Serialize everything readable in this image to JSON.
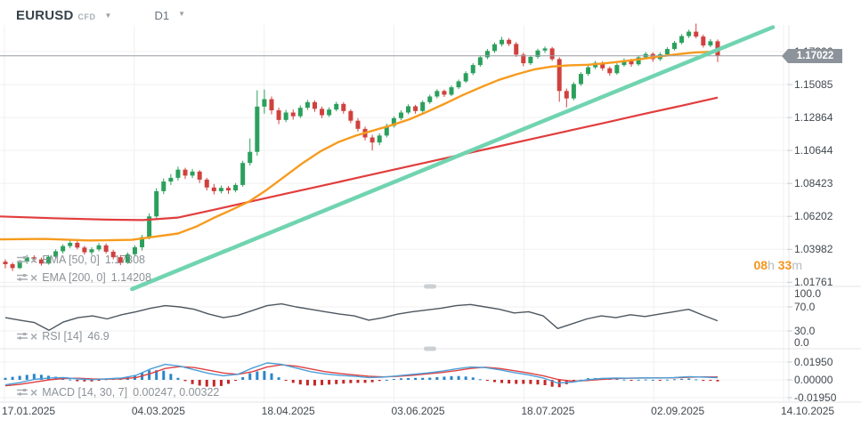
{
  "toolbar": {
    "symbol": "EURUSD",
    "market_type": "CFD",
    "timeframe": "D1"
  },
  "indicators": {
    "ema_fast": {
      "label": "EMA [50, 0]",
      "value": "1.17308"
    },
    "ema_slow": {
      "label": "EMA [200, 0]",
      "value": "1.14208"
    },
    "rsi": {
      "label": "RSI [14]",
      "value": "46.9"
    },
    "macd": {
      "label": "MACD [14, 30, 7]",
      "value": "0.00247,  0.00322"
    }
  },
  "countdown": {
    "hours": "08",
    "hours_unit": "h",
    "minutes": "33",
    "minutes_unit": "m"
  },
  "price_badge": {
    "label": "1.17022"
  },
  "colors": {
    "candle_up": "#2ba05c",
    "candle_down": "#d0413e",
    "ema_fast": "#f79b1e",
    "ema_slow": "#e23d3d",
    "trendline": "#70d4b0",
    "price_line": "#979ea4",
    "rsi_line": "#4d565f",
    "macd_line": "#4a9fd8",
    "macd_signal": "#e04040",
    "hist_pos": "#2a86c8",
    "hist_neg": "#c62828",
    "grid": "#f0f0f0",
    "divider": "#e4e6e8",
    "tick": "#c9cdd1",
    "handle": "#ccd0d3"
  },
  "chart_data": {
    "type": "candlestick",
    "symbol": "EURUSD",
    "timeframe": "D1",
    "current_price": 1.17022,
    "price_axis_ticks": [
      1.17306,
      1.15085,
      1.12864,
      1.10644,
      1.08423,
      1.06202,
      1.03982,
      1.01761
    ],
    "time_axis_ticks": [
      "17.01.2025",
      "04.03.2025",
      "18.04.2025",
      "03.06.2025",
      "18.07.2025",
      "02.09.2025",
      "14.10.2025"
    ],
    "candles": [
      [
        1.0315,
        1.033,
        1.027,
        1.0298
      ],
      [
        1.0298,
        1.031,
        1.0252,
        1.0272
      ],
      [
        1.0272,
        1.0325,
        1.0265,
        1.0315
      ],
      [
        1.0315,
        1.036,
        1.03,
        1.0345
      ],
      [
        1.0345,
        1.0358,
        1.0312,
        1.033
      ],
      [
        1.033,
        1.0342,
        1.0288,
        1.0302
      ],
      [
        1.0302,
        1.036,
        1.0295,
        1.0348
      ],
      [
        1.0348,
        1.0398,
        1.0335,
        1.0385
      ],
      [
        1.0385,
        1.0432,
        1.037,
        1.042
      ],
      [
        1.042,
        1.0458,
        1.0405,
        1.0442
      ],
      [
        1.0442,
        1.0455,
        1.0398,
        1.041
      ],
      [
        1.041,
        1.0422,
        1.0362,
        1.0378
      ],
      [
        1.0378,
        1.0412,
        1.036,
        1.0398
      ],
      [
        1.0398,
        1.044,
        1.0385,
        1.0425
      ],
      [
        1.0425,
        1.0438,
        1.037,
        1.0382
      ],
      [
        1.0382,
        1.0395,
        1.033,
        1.0345
      ],
      [
        1.0345,
        1.036,
        1.0292,
        1.0308
      ],
      [
        1.0308,
        1.0378,
        1.03,
        1.0365
      ],
      [
        1.0365,
        1.0425,
        1.0352,
        1.0412
      ],
      [
        1.0412,
        1.0495,
        1.039,
        1.048
      ],
      [
        1.048,
        1.064,
        1.0465,
        1.062
      ],
      [
        1.062,
        1.081,
        1.0605,
        1.079
      ],
      [
        1.079,
        1.0875,
        1.077,
        1.0855
      ],
      [
        1.0855,
        1.0905,
        1.0832,
        1.088
      ],
      [
        1.088,
        1.0955,
        1.0862,
        1.0935
      ],
      [
        1.0935,
        1.0948,
        1.0872,
        1.0895
      ],
      [
        1.0895,
        1.094,
        1.0878,
        1.0922
      ],
      [
        1.0922,
        1.0932,
        1.0845,
        1.0868
      ],
      [
        1.0868,
        1.088,
        1.0795,
        1.0815
      ],
      [
        1.0815,
        1.0838,
        1.0768,
        1.079
      ],
      [
        1.079,
        1.0828,
        1.0775,
        1.0812
      ],
      [
        1.0812,
        1.0825,
        1.0772,
        1.0795
      ],
      [
        1.0795,
        1.0845,
        1.0782,
        1.0832
      ],
      [
        1.0832,
        1.0995,
        1.082,
        1.098
      ],
      [
        1.098,
        1.1145,
        1.0962,
        1.1055
      ],
      [
        1.1055,
        1.147,
        1.103,
        1.136
      ],
      [
        1.136,
        1.1475,
        1.1312,
        1.141
      ],
      [
        1.141,
        1.1428,
        1.1308,
        1.1335
      ],
      [
        1.1335,
        1.1352,
        1.1242,
        1.127
      ],
      [
        1.127,
        1.1338,
        1.1255,
        1.132
      ],
      [
        1.132,
        1.134,
        1.1272,
        1.1295
      ],
      [
        1.1295,
        1.1368,
        1.1282,
        1.1352
      ],
      [
        1.1352,
        1.1405,
        1.1338,
        1.139
      ],
      [
        1.139,
        1.1402,
        1.1325,
        1.1345
      ],
      [
        1.1345,
        1.136,
        1.1282,
        1.1302
      ],
      [
        1.1302,
        1.1355,
        1.129,
        1.134
      ],
      [
        1.134,
        1.1392,
        1.1328,
        1.1378
      ],
      [
        1.1378,
        1.139,
        1.1312,
        1.133
      ],
      [
        1.133,
        1.1342,
        1.1248,
        1.1265
      ],
      [
        1.1265,
        1.1282,
        1.1192,
        1.121
      ],
      [
        1.121,
        1.1225,
        1.1132,
        1.1152
      ],
      [
        1.1152,
        1.117,
        1.1065,
        1.1118
      ],
      [
        1.1118,
        1.118,
        1.11,
        1.1165
      ],
      [
        1.1165,
        1.1245,
        1.1152,
        1.123
      ],
      [
        1.123,
        1.1295,
        1.1218,
        1.1282
      ],
      [
        1.1282,
        1.1335,
        1.1268,
        1.132
      ],
      [
        1.132,
        1.1375,
        1.1308,
        1.1362
      ],
      [
        1.1362,
        1.1372,
        1.1312,
        1.133
      ],
      [
        1.133,
        1.1402,
        1.132,
        1.139
      ],
      [
        1.139,
        1.144,
        1.1378,
        1.1428
      ],
      [
        1.1428,
        1.1478,
        1.1415,
        1.1465
      ],
      [
        1.1465,
        1.1475,
        1.1425,
        1.144
      ],
      [
        1.144,
        1.1502,
        1.143,
        1.149
      ],
      [
        1.149,
        1.1542,
        1.1478,
        1.153
      ],
      [
        1.153,
        1.1598,
        1.152,
        1.1585
      ],
      [
        1.1585,
        1.1652,
        1.1572,
        1.164
      ],
      [
        1.164,
        1.1705,
        1.1628,
        1.1692
      ],
      [
        1.1692,
        1.1748,
        1.168,
        1.1735
      ],
      [
        1.1735,
        1.1792,
        1.1722,
        1.178
      ],
      [
        1.178,
        1.183,
        1.1765,
        1.181
      ],
      [
        1.181,
        1.1822,
        1.1768,
        1.1782
      ],
      [
        1.1782,
        1.1795,
        1.1695,
        1.171
      ],
      [
        1.171,
        1.1722,
        1.1632,
        1.1652
      ],
      [
        1.1652,
        1.1705,
        1.164,
        1.1695
      ],
      [
        1.1695,
        1.175,
        1.1682,
        1.1738
      ],
      [
        1.1738,
        1.1765,
        1.1722,
        1.1752
      ],
      [
        1.1752,
        1.1762,
        1.1668,
        1.168
      ],
      [
        1.168,
        1.1692,
        1.1392,
        1.1465
      ],
      [
        1.1465,
        1.1482,
        1.1355,
        1.1415
      ],
      [
        1.1415,
        1.1525,
        1.1402,
        1.1512
      ],
      [
        1.1512,
        1.1592,
        1.15,
        1.158
      ],
      [
        1.158,
        1.1638,
        1.1568,
        1.1625
      ],
      [
        1.1625,
        1.1668,
        1.1612,
        1.1655
      ],
      [
        1.1655,
        1.1665,
        1.1602,
        1.1618
      ],
      [
        1.1618,
        1.163,
        1.1568,
        1.1585
      ],
      [
        1.1585,
        1.1652,
        1.1575,
        1.164
      ],
      [
        1.164,
        1.1685,
        1.1628,
        1.1672
      ],
      [
        1.1672,
        1.1682,
        1.1628,
        1.1645
      ],
      [
        1.1645,
        1.1705,
        1.1635,
        1.1692
      ],
      [
        1.1692,
        1.1728,
        1.168,
        1.1715
      ],
      [
        1.1715,
        1.1725,
        1.1662,
        1.168
      ],
      [
        1.168,
        1.1725,
        1.1668,
        1.1712
      ],
      [
        1.1712,
        1.176,
        1.17,
        1.1748
      ],
      [
        1.1748,
        1.1802,
        1.1738,
        1.179
      ],
      [
        1.179,
        1.1848,
        1.178,
        1.1835
      ],
      [
        1.1835,
        1.1878,
        1.1822,
        1.1865
      ],
      [
        1.1865,
        1.1919,
        1.182,
        1.1832
      ],
      [
        1.1832,
        1.1845,
        1.1758,
        1.1772
      ],
      [
        1.1772,
        1.1815,
        1.176,
        1.18
      ],
      [
        1.18,
        1.1812,
        1.166,
        1.17022
      ]
    ],
    "ema_fast": {
      "period": 50,
      "last_value": 1.17308,
      "points": [
        [
          0,
          1.0465
        ],
        [
          0.062,
          1.0468
        ],
        [
          0.124,
          1.0458
        ],
        [
          0.184,
          1.0462
        ],
        [
          0.211,
          1.048
        ],
        [
          0.248,
          1.0505
        ],
        [
          0.273,
          1.055
        ],
        [
          0.298,
          1.061
        ],
        [
          0.323,
          1.0665
        ],
        [
          0.347,
          1.072
        ],
        [
          0.372,
          1.08
        ],
        [
          0.397,
          1.089
        ],
        [
          0.422,
          1.098
        ],
        [
          0.447,
          1.106
        ],
        [
          0.471,
          1.112
        ],
        [
          0.496,
          1.1165
        ],
        [
          0.521,
          1.12
        ],
        [
          0.546,
          1.1235
        ],
        [
          0.571,
          1.1275
        ],
        [
          0.595,
          1.1325
        ],
        [
          0.62,
          1.138
        ],
        [
          0.645,
          1.1438
        ],
        [
          0.67,
          1.149
        ],
        [
          0.695,
          1.154
        ],
        [
          0.72,
          1.1578
        ],
        [
          0.744,
          1.161
        ],
        [
          0.769,
          1.163
        ],
        [
          0.794,
          1.1638
        ],
        [
          0.819,
          1.1642
        ],
        [
          0.844,
          1.1652
        ],
        [
          0.868,
          1.1665
        ],
        [
          0.893,
          1.168
        ],
        [
          0.918,
          1.1697
        ],
        [
          0.943,
          1.1712
        ],
        [
          0.968,
          1.1725
        ],
        [
          1.0,
          1.17308
        ]
      ]
    },
    "ema_slow": {
      "period": 200,
      "last_value": 1.14208,
      "points": [
        [
          0,
          1.062
        ],
        [
          0.074,
          1.0608
        ],
        [
          0.149,
          1.0598
        ],
        [
          0.199,
          1.0595
        ],
        [
          0.248,
          1.0612
        ],
        [
          0.298,
          1.0665
        ],
        [
          0.347,
          1.0718
        ],
        [
          0.397,
          1.0772
        ],
        [
          0.447,
          1.0825
        ],
        [
          0.496,
          1.0878
        ],
        [
          0.546,
          1.0932
        ],
        [
          0.595,
          1.0985
        ],
        [
          0.645,
          1.1039
        ],
        [
          0.695,
          1.1092
        ],
        [
          0.744,
          1.1145
        ],
        [
          0.794,
          1.1199
        ],
        [
          0.844,
          1.1252
        ],
        [
          0.893,
          1.1306
        ],
        [
          0.943,
          1.1359
        ],
        [
          1.0,
          1.14208
        ]
      ]
    },
    "trendline": {
      "from": [
        0.184,
        1.013
      ],
      "to": [
        1.077,
        1.1895
      ]
    },
    "rsi": {
      "period": 14,
      "last_value": 46.9,
      "axis_ticks": [
        100.0,
        70.0,
        30.0,
        0.0
      ],
      "values": [
        52,
        48,
        44,
        31,
        45,
        52,
        55,
        50,
        57,
        62,
        68,
        72,
        70,
        66,
        58,
        52,
        56,
        64,
        72,
        75,
        70,
        66,
        62,
        58,
        55,
        48,
        52,
        58,
        62,
        65,
        68,
        72,
        74,
        70,
        66,
        60,
        62,
        55,
        34,
        42,
        50,
        55,
        52,
        57,
        54,
        58,
        62,
        66,
        56,
        46.9
      ]
    },
    "macd": {
      "params": [
        14,
        30,
        7
      ],
      "last_macd": 0.00247,
      "last_signal": 0.00322,
      "axis_ticks": [
        0.0195,
        0.0,
        -0.0195
      ],
      "macd_line": [
        -0.0055,
        -0.003,
        0.0005,
        0.002,
        0.0025,
        0.001,
        0.0002,
        0.0012,
        0.002,
        0.005,
        0.012,
        0.017,
        0.015,
        0.011,
        0.007,
        0.0045,
        0.006,
        0.013,
        0.0185,
        0.017,
        0.013,
        0.009,
        0.0065,
        0.005,
        0.004,
        0.0025,
        0.003,
        0.0045,
        0.006,
        0.0075,
        0.0095,
        0.012,
        0.014,
        0.0135,
        0.011,
        0.008,
        0.0055,
        0.002,
        -0.0035,
        -0.0025,
        0.0,
        0.0015,
        0.002,
        0.0018,
        0.0022,
        0.002,
        0.0025,
        0.0035,
        0.003,
        0.00247
      ],
      "signal_line": [
        -0.0065,
        -0.005,
        -0.0025,
        0.0,
        0.0015,
        0.0018,
        0.001,
        0.0008,
        0.0012,
        0.0025,
        0.007,
        0.0125,
        0.0145,
        0.0135,
        0.0105,
        0.0075,
        0.006,
        0.009,
        0.014,
        0.0165,
        0.015,
        0.012,
        0.009,
        0.007,
        0.0055,
        0.004,
        0.0032,
        0.0038,
        0.005,
        0.0065,
        0.008,
        0.01,
        0.0125,
        0.0138,
        0.0125,
        0.01,
        0.0075,
        0.0045,
        0.0005,
        -0.0015,
        -0.0008,
        0.0005,
        0.0015,
        0.0019,
        0.002,
        0.0021,
        0.0022,
        0.0028,
        0.0032,
        0.00322
      ]
    }
  }
}
